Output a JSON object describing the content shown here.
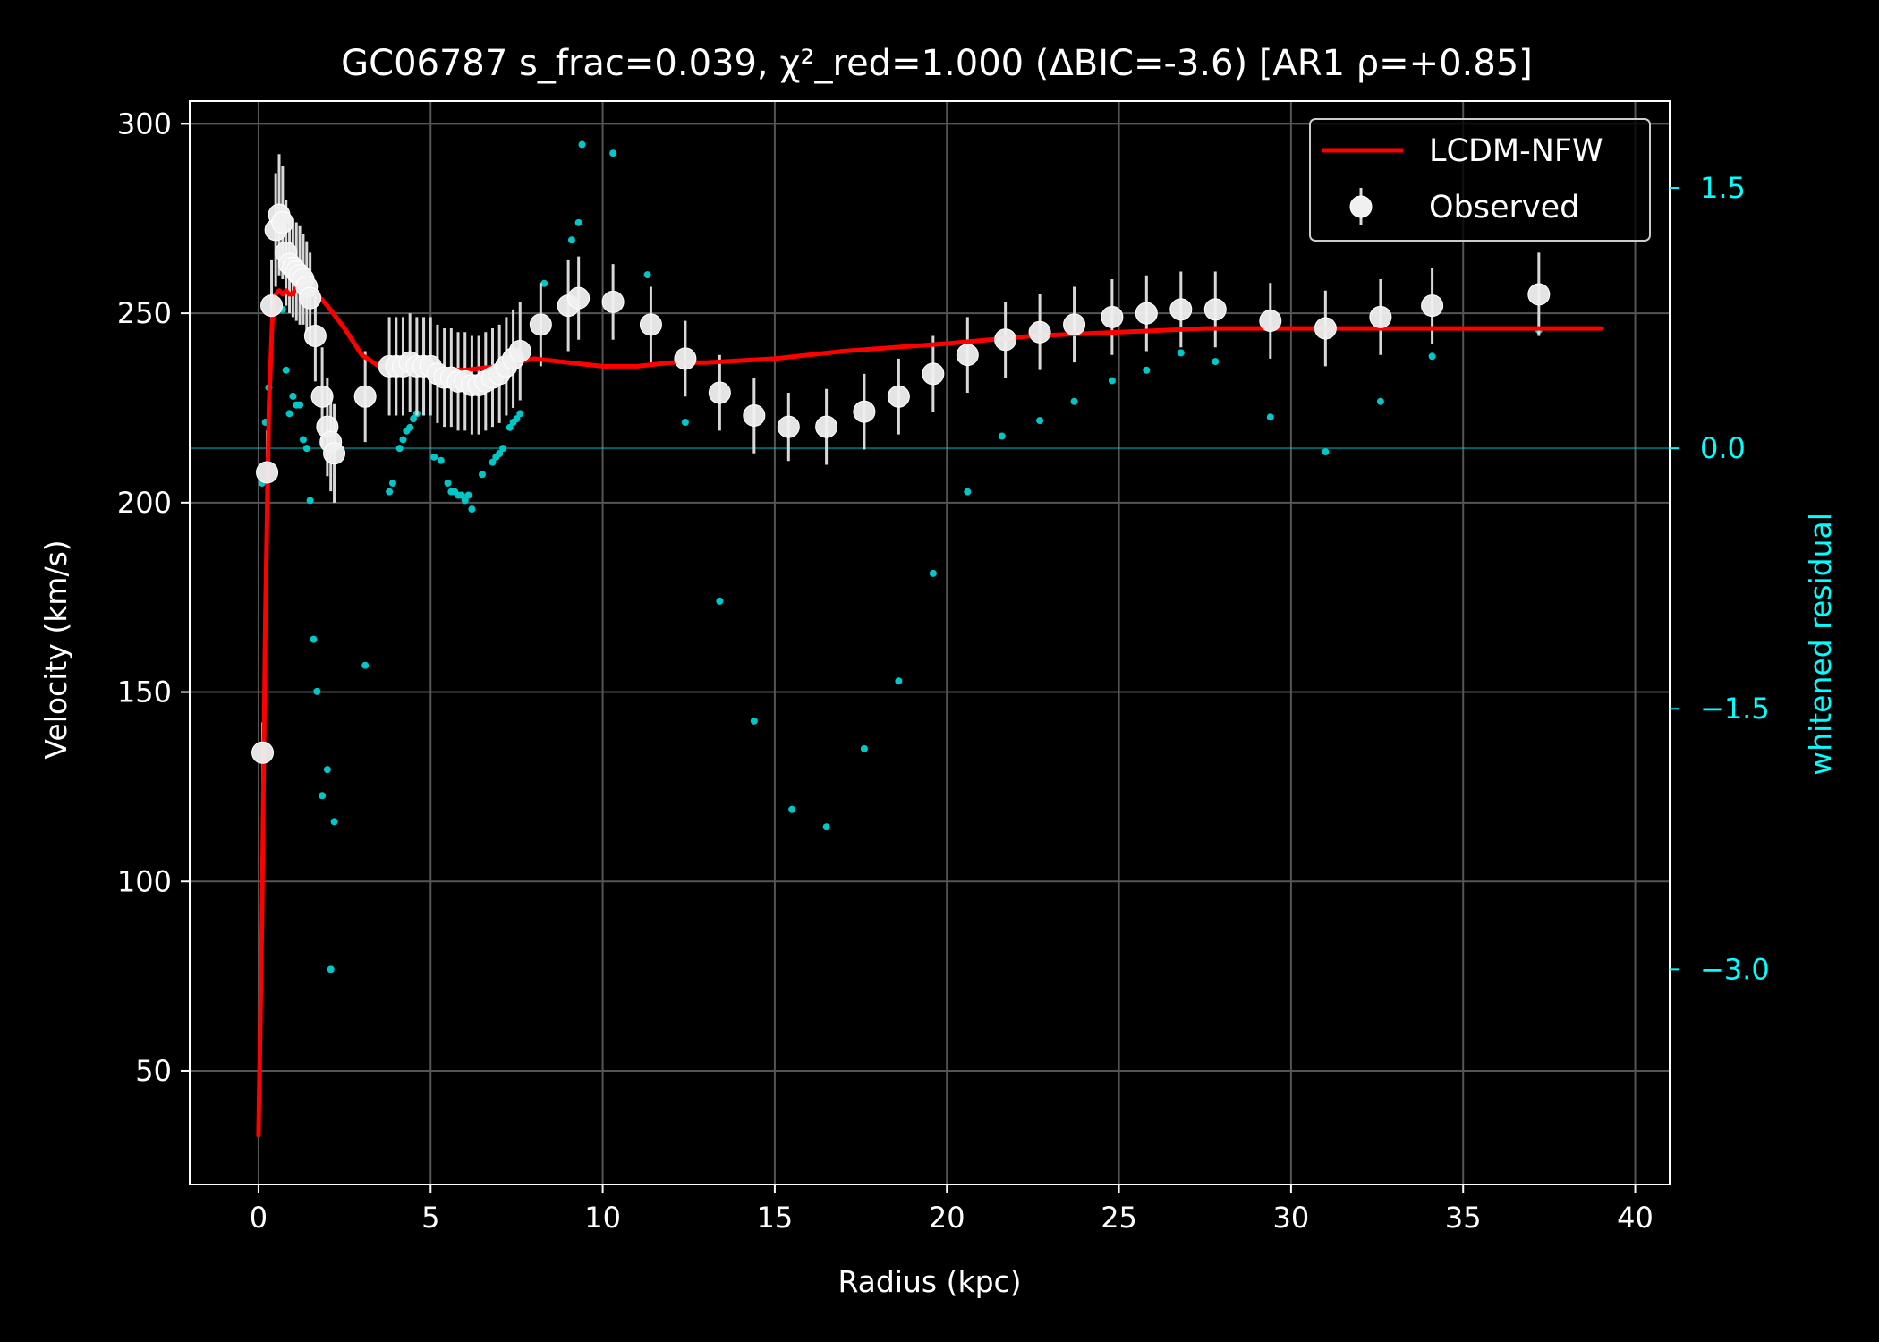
{
  "chart_data": {
    "type": "scatter",
    "title": "GC06787  s_frac=0.039, χ²_red=1.000  (ΔBIC=-3.6) [AR1 ρ=+0.85]",
    "xlabel": "Radius (kpc)",
    "ylabel": "Velocity (km/s)",
    "y2label": "whitened residual",
    "xlim": [
      -2,
      41
    ],
    "ylim": [
      20,
      306
    ],
    "y2lim": [
      -4.24,
      2.0
    ],
    "xticks": [
      0,
      5,
      10,
      15,
      20,
      25,
      30,
      35,
      40
    ],
    "yticks": [
      50,
      100,
      150,
      200,
      250,
      300
    ],
    "y2ticks": [
      1.5,
      0.0,
      -1.5,
      -3.0
    ],
    "y2tick_labels": [
      "1.5",
      "0.0",
      "−1.5",
      "−3.0"
    ],
    "grid": true,
    "legend_position": "upper right",
    "colors": {
      "background": "#000000",
      "model": "#ff0000",
      "observed": "#f0f0f0",
      "residual": "#00c8c8",
      "right_axis": "#00ffff",
      "grid": "#555555"
    },
    "series": [
      {
        "name": "LCDM-NFW",
        "kind": "line",
        "x": [
          0,
          0.1,
          0.2,
          0.3,
          0.4,
          0.5,
          0.6,
          0.7,
          0.8,
          0.9,
          1.0,
          1.2,
          1.5,
          2.0,
          2.5,
          3.0,
          3.5,
          4.0,
          4.5,
          5.0,
          6.0,
          7.0,
          8.0,
          9.0,
          10.0,
          11.0,
          12.0,
          13.0,
          15.0,
          17.0,
          20.0,
          22.5,
          25.0,
          27.5,
          30.0,
          32.5,
          35.0,
          37.5,
          39.0
        ],
        "y": [
          33,
          90,
          170,
          225,
          248,
          255,
          256,
          255,
          256,
          255,
          255,
          259,
          257,
          252,
          246,
          239,
          236,
          236,
          236,
          235,
          235,
          236,
          238,
          237,
          236,
          236,
          237,
          237,
          238,
          240,
          242,
          244,
          245,
          246,
          246,
          246,
          246,
          246,
          246
        ]
      },
      {
        "name": "Observed",
        "kind": "errorbar",
        "x": [
          0.12,
          0.25,
          0.38,
          0.5,
          0.6,
          0.7,
          0.8,
          0.9,
          1.0,
          1.1,
          1.2,
          1.3,
          1.4,
          1.5,
          1.65,
          1.85,
          2.0,
          2.1,
          2.2,
          3.1,
          3.8,
          4.0,
          4.2,
          4.4,
          4.6,
          4.8,
          5.0,
          5.2,
          5.4,
          5.6,
          5.8,
          6.0,
          6.2,
          6.4,
          6.6,
          6.8,
          7.0,
          7.2,
          7.4,
          7.6,
          8.2,
          9.0,
          9.3,
          10.3,
          11.4,
          12.4,
          13.4,
          14.4,
          15.4,
          16.5,
          17.6,
          18.6,
          19.6,
          20.6,
          21.7,
          22.7,
          23.7,
          24.8,
          25.8,
          26.8,
          27.8,
          29.4,
          31.0,
          32.6,
          34.1,
          37.2
        ],
        "y": [
          134,
          208,
          252,
          272,
          276,
          274,
          266,
          263,
          262,
          261,
          260,
          259,
          257,
          254,
          244,
          228,
          220,
          216,
          213,
          228,
          236,
          236,
          236,
          237,
          236,
          236,
          236,
          234,
          233,
          233,
          232,
          232,
          231,
          231,
          232,
          233,
          234,
          236,
          238,
          240,
          247,
          252,
          254,
          253,
          247,
          238,
          229,
          223,
          220,
          220,
          224,
          228,
          234,
          239,
          243,
          245,
          247,
          249,
          250,
          251,
          251,
          248,
          246,
          249,
          252,
          255
        ],
        "err": [
          8,
          11,
          12,
          15,
          16,
          15,
          14,
          13,
          13,
          13,
          13,
          12,
          12,
          12,
          12,
          13,
          13,
          13,
          13,
          12,
          13,
          13,
          13,
          13,
          13,
          13,
          13,
          13,
          13,
          13,
          13,
          13,
          13,
          13,
          13,
          13,
          13,
          13,
          13,
          13,
          11,
          12,
          11,
          10,
          10,
          10,
          10,
          10,
          9,
          10,
          10,
          10,
          10,
          10,
          10,
          10,
          10,
          10,
          10,
          10,
          10,
          10,
          10,
          10,
          10,
          11
        ]
      },
      {
        "name": "",
        "kind": "residual",
        "axis": "right",
        "x": [
          0.1,
          0.2,
          0.3,
          0.4,
          0.5,
          0.6,
          0.7,
          0.8,
          0.9,
          1.0,
          1.1,
          1.2,
          1.3,
          1.4,
          1.5,
          1.6,
          1.7,
          1.85,
          2.0,
          2.1,
          2.2,
          3.1,
          3.8,
          3.9,
          4.1,
          4.2,
          4.3,
          4.4,
          4.5,
          4.6,
          5.1,
          5.3,
          5.5,
          5.6,
          5.7,
          5.8,
          5.9,
          6.0,
          6.1,
          6.2,
          6.5,
          6.8,
          6.9,
          7.0,
          7.1,
          7.3,
          7.4,
          7.5,
          7.6,
          8.3,
          9.1,
          9.3,
          9.4,
          10.3,
          11.3,
          12.4,
          13.4,
          14.4,
          15.5,
          16.5,
          17.6,
          18.6,
          19.6,
          20.6,
          21.6,
          22.7,
          23.7,
          24.8,
          25.8,
          26.8,
          27.8,
          29.4,
          31.0,
          32.6,
          34.1,
          37.2
        ],
        "y": [
          -0.2,
          0.15,
          0.35,
          1.3,
          1.27,
          1.25,
          0.8,
          0.45,
          0.2,
          0.3,
          0.25,
          0.25,
          0.05,
          0.0,
          -0.3,
          -1.1,
          -1.4,
          -2.0,
          -1.85,
          -3.0,
          -2.15,
          -1.25,
          -0.25,
          -0.2,
          0.0,
          0.05,
          0.1,
          0.12,
          0.17,
          0.2,
          -0.05,
          -0.07,
          -0.2,
          -0.25,
          -0.25,
          -0.27,
          -0.27,
          -0.3,
          -0.27,
          -0.35,
          -0.15,
          -0.08,
          -0.05,
          -0.03,
          0.0,
          0.12,
          0.15,
          0.17,
          0.2,
          0.95,
          1.2,
          1.3,
          1.75,
          1.7,
          1.0,
          0.15,
          -0.88,
          -1.57,
          -2.08,
          -2.18,
          -1.73,
          -1.34,
          -0.72,
          -0.25,
          0.07,
          0.16,
          0.27,
          0.39,
          0.45,
          0.55,
          0.5,
          0.18,
          -0.02,
          0.27,
          0.53,
          0.68
        ]
      }
    ]
  }
}
